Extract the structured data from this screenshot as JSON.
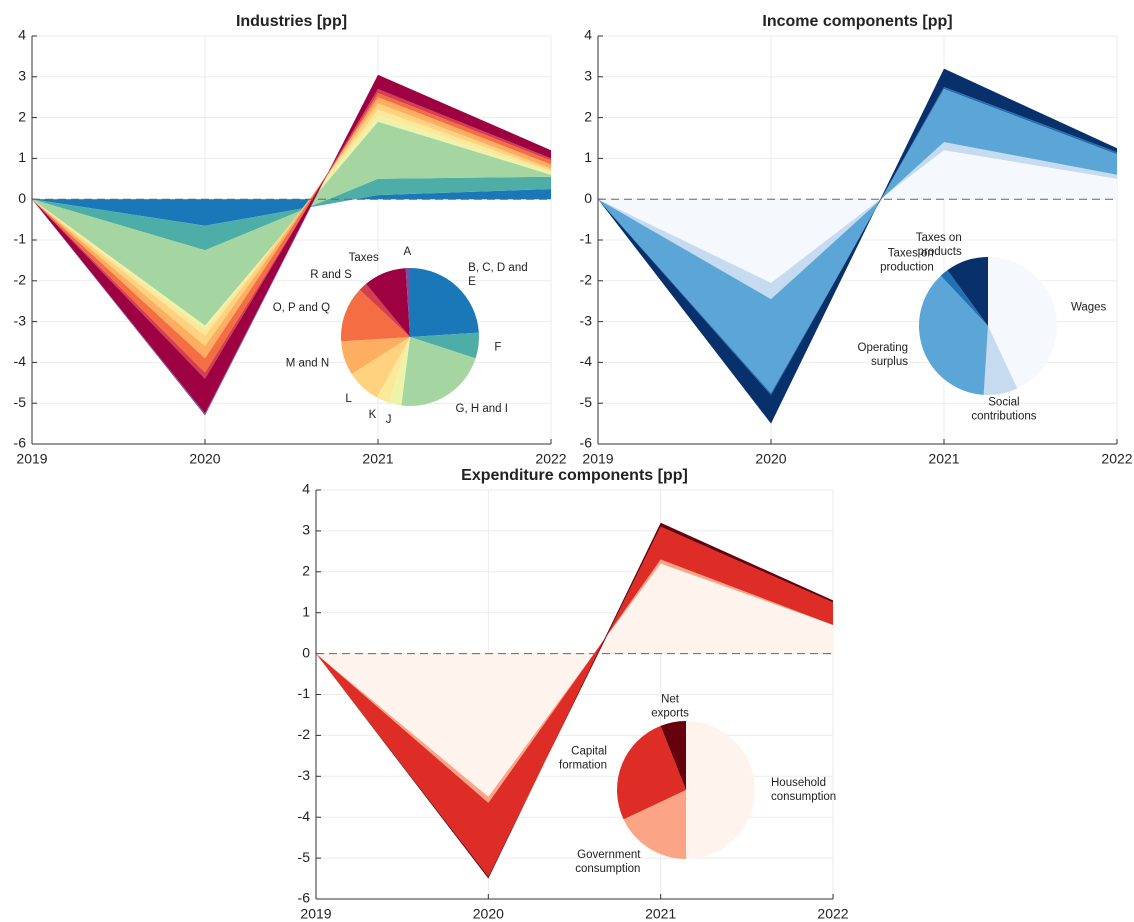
{
  "chart_data": [
    {
      "type": "area",
      "title": "Industries [pp]",
      "x": [
        2019,
        2020,
        2021,
        2022
      ],
      "xlim": [
        2019,
        2022
      ],
      "xticks": [
        2019,
        2020,
        2021,
        2022
      ],
      "ylim": [
        -6,
        4
      ],
      "yticks": [
        -6,
        -5,
        -4,
        -3,
        -2,
        -1,
        0,
        1,
        2,
        3,
        4
      ],
      "grid": true,
      "zero_line": true,
      "series": [
        {
          "name": "B, C, D and E",
          "color": "#1a78b8",
          "values": [
            0,
            -0.65,
            0.1,
            0.25
          ]
        },
        {
          "name": "F",
          "color": "#4daea8",
          "values": [
            0,
            -0.6,
            0.4,
            0.3
          ]
        },
        {
          "name": "G, H and I",
          "color": "#a5d6a2",
          "values": [
            0,
            -1.85,
            1.4,
            0.05
          ]
        },
        {
          "name": "J",
          "color": "#eef3aa",
          "values": [
            0,
            -0.1,
            0.15,
            0.05
          ]
        },
        {
          "name": "K",
          "color": "#fde89a",
          "values": [
            0,
            -0.15,
            0.15,
            0.05
          ]
        },
        {
          "name": "L",
          "color": "#fed27f",
          "values": [
            0,
            -0.25,
            0.15,
            0.05
          ]
        },
        {
          "name": "M and N",
          "color": "#fdae61",
          "values": [
            0,
            -0.3,
            0.15,
            0.1
          ]
        },
        {
          "name": "O, P and Q",
          "color": "#f46d43",
          "values": [
            0,
            -0.35,
            0.1,
            0.1
          ]
        },
        {
          "name": "R and S",
          "color": "#d53e4f",
          "values": [
            0,
            -0.15,
            0.1,
            0.05
          ]
        },
        {
          "name": "Taxes",
          "color": "#9e0142",
          "values": [
            0,
            -0.85,
            0.35,
            0.2
          ]
        },
        {
          "name": "A",
          "color": "#7b4f9e",
          "values": [
            0,
            -0.05,
            0,
            0
          ]
        }
      ],
      "inset": {
        "type": "pie",
        "values": [
          24,
          6,
          22,
          3,
          3,
          8,
          8,
          13,
          2,
          10,
          1
        ]
      }
    },
    {
      "type": "area",
      "title": "Income components [pp]",
      "x": [
        2019,
        2020,
        2021,
        2022
      ],
      "xlim": [
        2019,
        2022
      ],
      "xticks": [
        2019,
        2020,
        2021,
        2022
      ],
      "ylim": [
        -6,
        4
      ],
      "yticks": [
        -6,
        -5,
        -4,
        -3,
        -2,
        -1,
        0,
        1,
        2,
        3,
        4
      ],
      "grid": true,
      "zero_line": true,
      "series": [
        {
          "name": "Wages",
          "color": "#f5f9fe",
          "values": [
            0,
            -2.05,
            1.2,
            0.5
          ]
        },
        {
          "name": "Social contributions",
          "color": "#c6dbef",
          "values": [
            0,
            -0.4,
            0.2,
            0.1
          ]
        },
        {
          "name": "Operating surplus",
          "color": "#5ba6d6",
          "values": [
            0,
            -2.3,
            1.3,
            0.5
          ]
        },
        {
          "name": "Taxes on production",
          "color": "#2171b5",
          "values": [
            0,
            -0.05,
            0.05,
            0.05
          ]
        },
        {
          "name": "Taxes on products",
          "color": "#08306b",
          "values": [
            0,
            -0.7,
            0.45,
            0.1
          ]
        }
      ],
      "inset": {
        "type": "pie",
        "values": [
          43,
          8,
          37,
          2,
          10
        ]
      }
    },
    {
      "type": "area",
      "title": "Expenditure components [pp]",
      "x": [
        2019,
        2020,
        2021,
        2022
      ],
      "xlim": [
        2019,
        2022
      ],
      "xticks": [
        2019,
        2020,
        2021,
        2022
      ],
      "ylim": [
        -6,
        4
      ],
      "yticks": [
        -6,
        -5,
        -4,
        -3,
        -2,
        -1,
        0,
        1,
        2,
        3,
        4
      ],
      "grid": true,
      "zero_line": true,
      "series": [
        {
          "name": "Household consumption",
          "color": "#fff3ee",
          "values": [
            0,
            -3.5,
            2.2,
            0.7
          ]
        },
        {
          "name": "Government consumption",
          "color": "#fca486",
          "values": [
            0,
            -0.15,
            0.1,
            0
          ]
        },
        {
          "name": "Capital formation",
          "color": "#de2d26",
          "values": [
            0,
            -1.8,
            0.8,
            0.55
          ]
        },
        {
          "name": "Net exports",
          "color": "#67000d",
          "values": [
            0,
            -0.05,
            0.1,
            0.05
          ]
        }
      ],
      "inset": {
        "type": "pie",
        "values": [
          50,
          18,
          26,
          6
        ]
      }
    }
  ]
}
